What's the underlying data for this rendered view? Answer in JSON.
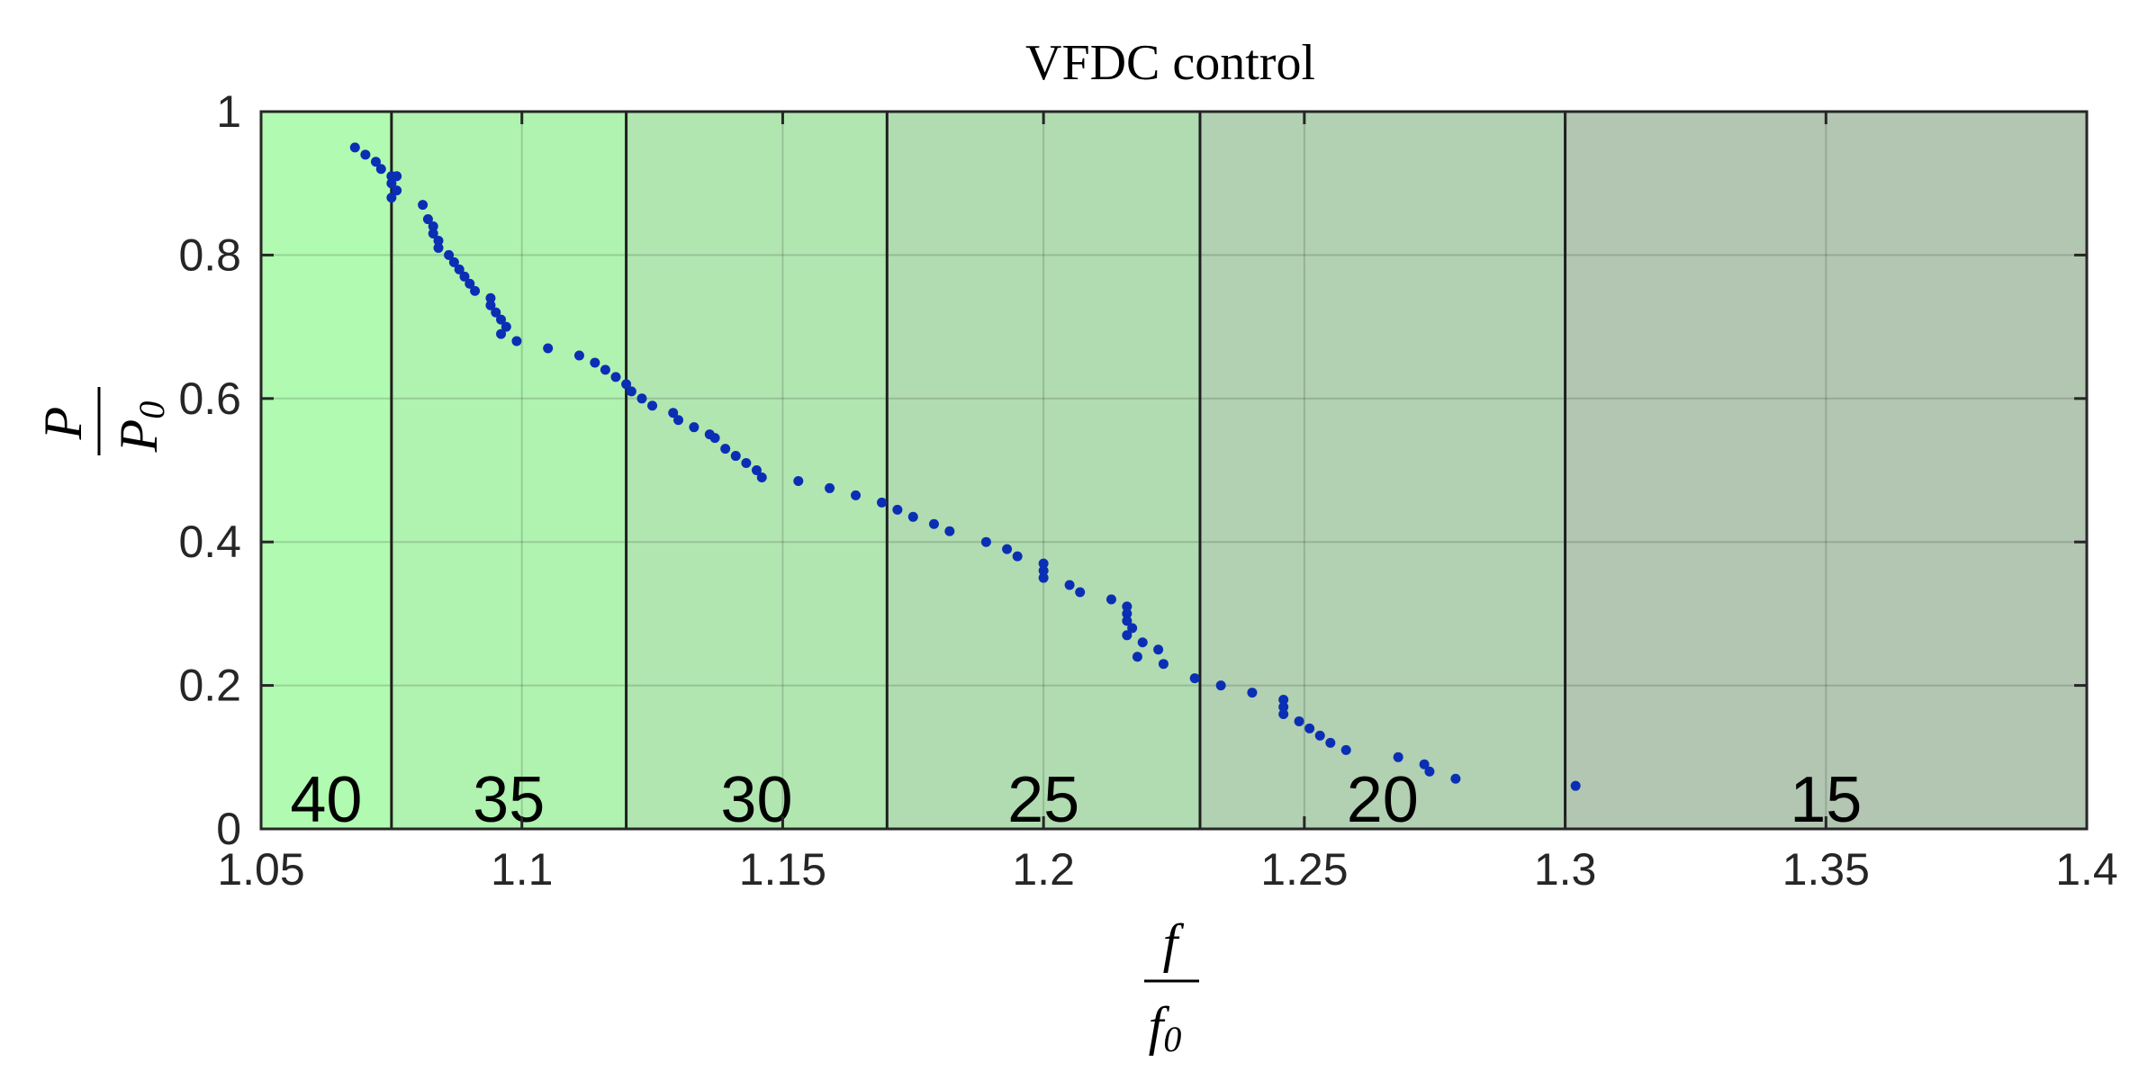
{
  "chart_data": {
    "type": "scatter",
    "title": "VFDC control",
    "xlabel": {
      "numerator": "f",
      "denominator": "f",
      "denominator_sub": "0"
    },
    "ylabel": {
      "numerator": "P",
      "denominator": "P",
      "denominator_sub": "0"
    },
    "xlim": [
      1.05,
      1.4
    ],
    "ylim": [
      0,
      1
    ],
    "x_ticks": [
      "1.05",
      "1.1",
      "1.15",
      "1.2",
      "1.25",
      "1.3",
      "1.35",
      "1.4"
    ],
    "y_ticks": [
      "0",
      "0.2",
      "0.4",
      "0.6",
      "0.8",
      "1"
    ],
    "grid": true,
    "marker_color": "#0a2fb4",
    "regions": [
      {
        "label": "40",
        "x0": 1.05,
        "x1": 1.075,
        "color": "#b1fab1"
      },
      {
        "label": "35",
        "x0": 1.075,
        "x1": 1.12,
        "color": "#b0f2b0"
      },
      {
        "label": "30",
        "x0": 1.12,
        "x1": 1.17,
        "color": "#b1e6b1"
      },
      {
        "label": "25",
        "x0": 1.17,
        "x1": 1.23,
        "color": "#b1dcb1"
      },
      {
        "label": "20",
        "x0": 1.23,
        "x1": 1.3,
        "color": "#b2d0b2"
      },
      {
        "label": "15",
        "x0": 1.3,
        "x1": 1.4,
        "color": "#b2c6b2"
      }
    ],
    "points": [
      [
        1.068,
        0.95
      ],
      [
        1.07,
        0.94
      ],
      [
        1.072,
        0.93
      ],
      [
        1.073,
        0.92
      ],
      [
        1.075,
        0.91
      ],
      [
        1.075,
        0.9
      ],
      [
        1.076,
        0.89
      ],
      [
        1.075,
        0.88
      ],
      [
        1.076,
        0.91
      ],
      [
        1.081,
        0.87
      ],
      [
        1.082,
        0.85
      ],
      [
        1.083,
        0.84
      ],
      [
        1.083,
        0.83
      ],
      [
        1.084,
        0.82
      ],
      [
        1.084,
        0.81
      ],
      [
        1.086,
        0.8
      ],
      [
        1.087,
        0.79
      ],
      [
        1.088,
        0.78
      ],
      [
        1.089,
        0.77
      ],
      [
        1.09,
        0.76
      ],
      [
        1.091,
        0.75
      ],
      [
        1.094,
        0.74
      ],
      [
        1.094,
        0.73
      ],
      [
        1.095,
        0.72
      ],
      [
        1.096,
        0.71
      ],
      [
        1.097,
        0.7
      ],
      [
        1.096,
        0.69
      ],
      [
        1.099,
        0.68
      ],
      [
        1.105,
        0.67
      ],
      [
        1.111,
        0.66
      ],
      [
        1.114,
        0.65
      ],
      [
        1.116,
        0.64
      ],
      [
        1.118,
        0.63
      ],
      [
        1.12,
        0.62
      ],
      [
        1.121,
        0.61
      ],
      [
        1.123,
        0.6
      ],
      [
        1.125,
        0.59
      ],
      [
        1.129,
        0.58
      ],
      [
        1.13,
        0.57
      ],
      [
        1.133,
        0.56
      ],
      [
        1.136,
        0.55
      ],
      [
        1.137,
        0.545
      ],
      [
        1.139,
        0.53
      ],
      [
        1.141,
        0.52
      ],
      [
        1.143,
        0.51
      ],
      [
        1.145,
        0.5
      ],
      [
        1.146,
        0.49
      ],
      [
        1.153,
        0.485
      ],
      [
        1.159,
        0.475
      ],
      [
        1.164,
        0.465
      ],
      [
        1.169,
        0.455
      ],
      [
        1.172,
        0.445
      ],
      [
        1.175,
        0.435
      ],
      [
        1.179,
        0.425
      ],
      [
        1.182,
        0.415
      ],
      [
        1.189,
        0.4
      ],
      [
        1.193,
        0.39
      ],
      [
        1.195,
        0.38
      ],
      [
        1.2,
        0.37
      ],
      [
        1.2,
        0.36
      ],
      [
        1.2,
        0.35
      ],
      [
        1.205,
        0.34
      ],
      [
        1.207,
        0.33
      ],
      [
        1.213,
        0.32
      ],
      [
        1.216,
        0.31
      ],
      [
        1.216,
        0.3
      ],
      [
        1.216,
        0.29
      ],
      [
        1.217,
        0.28
      ],
      [
        1.216,
        0.27
      ],
      [
        1.219,
        0.26
      ],
      [
        1.222,
        0.25
      ],
      [
        1.218,
        0.24
      ],
      [
        1.223,
        0.23
      ],
      [
        1.229,
        0.21
      ],
      [
        1.234,
        0.2
      ],
      [
        1.24,
        0.19
      ],
      [
        1.246,
        0.18
      ],
      [
        1.246,
        0.17
      ],
      [
        1.246,
        0.16
      ],
      [
        1.249,
        0.15
      ],
      [
        1.251,
        0.14
      ],
      [
        1.253,
        0.13
      ],
      [
        1.255,
        0.12
      ],
      [
        1.258,
        0.11
      ],
      [
        1.268,
        0.1
      ],
      [
        1.273,
        0.09
      ],
      [
        1.274,
        0.08
      ],
      [
        1.279,
        0.07
      ],
      [
        1.302,
        0.06
      ]
    ]
  }
}
